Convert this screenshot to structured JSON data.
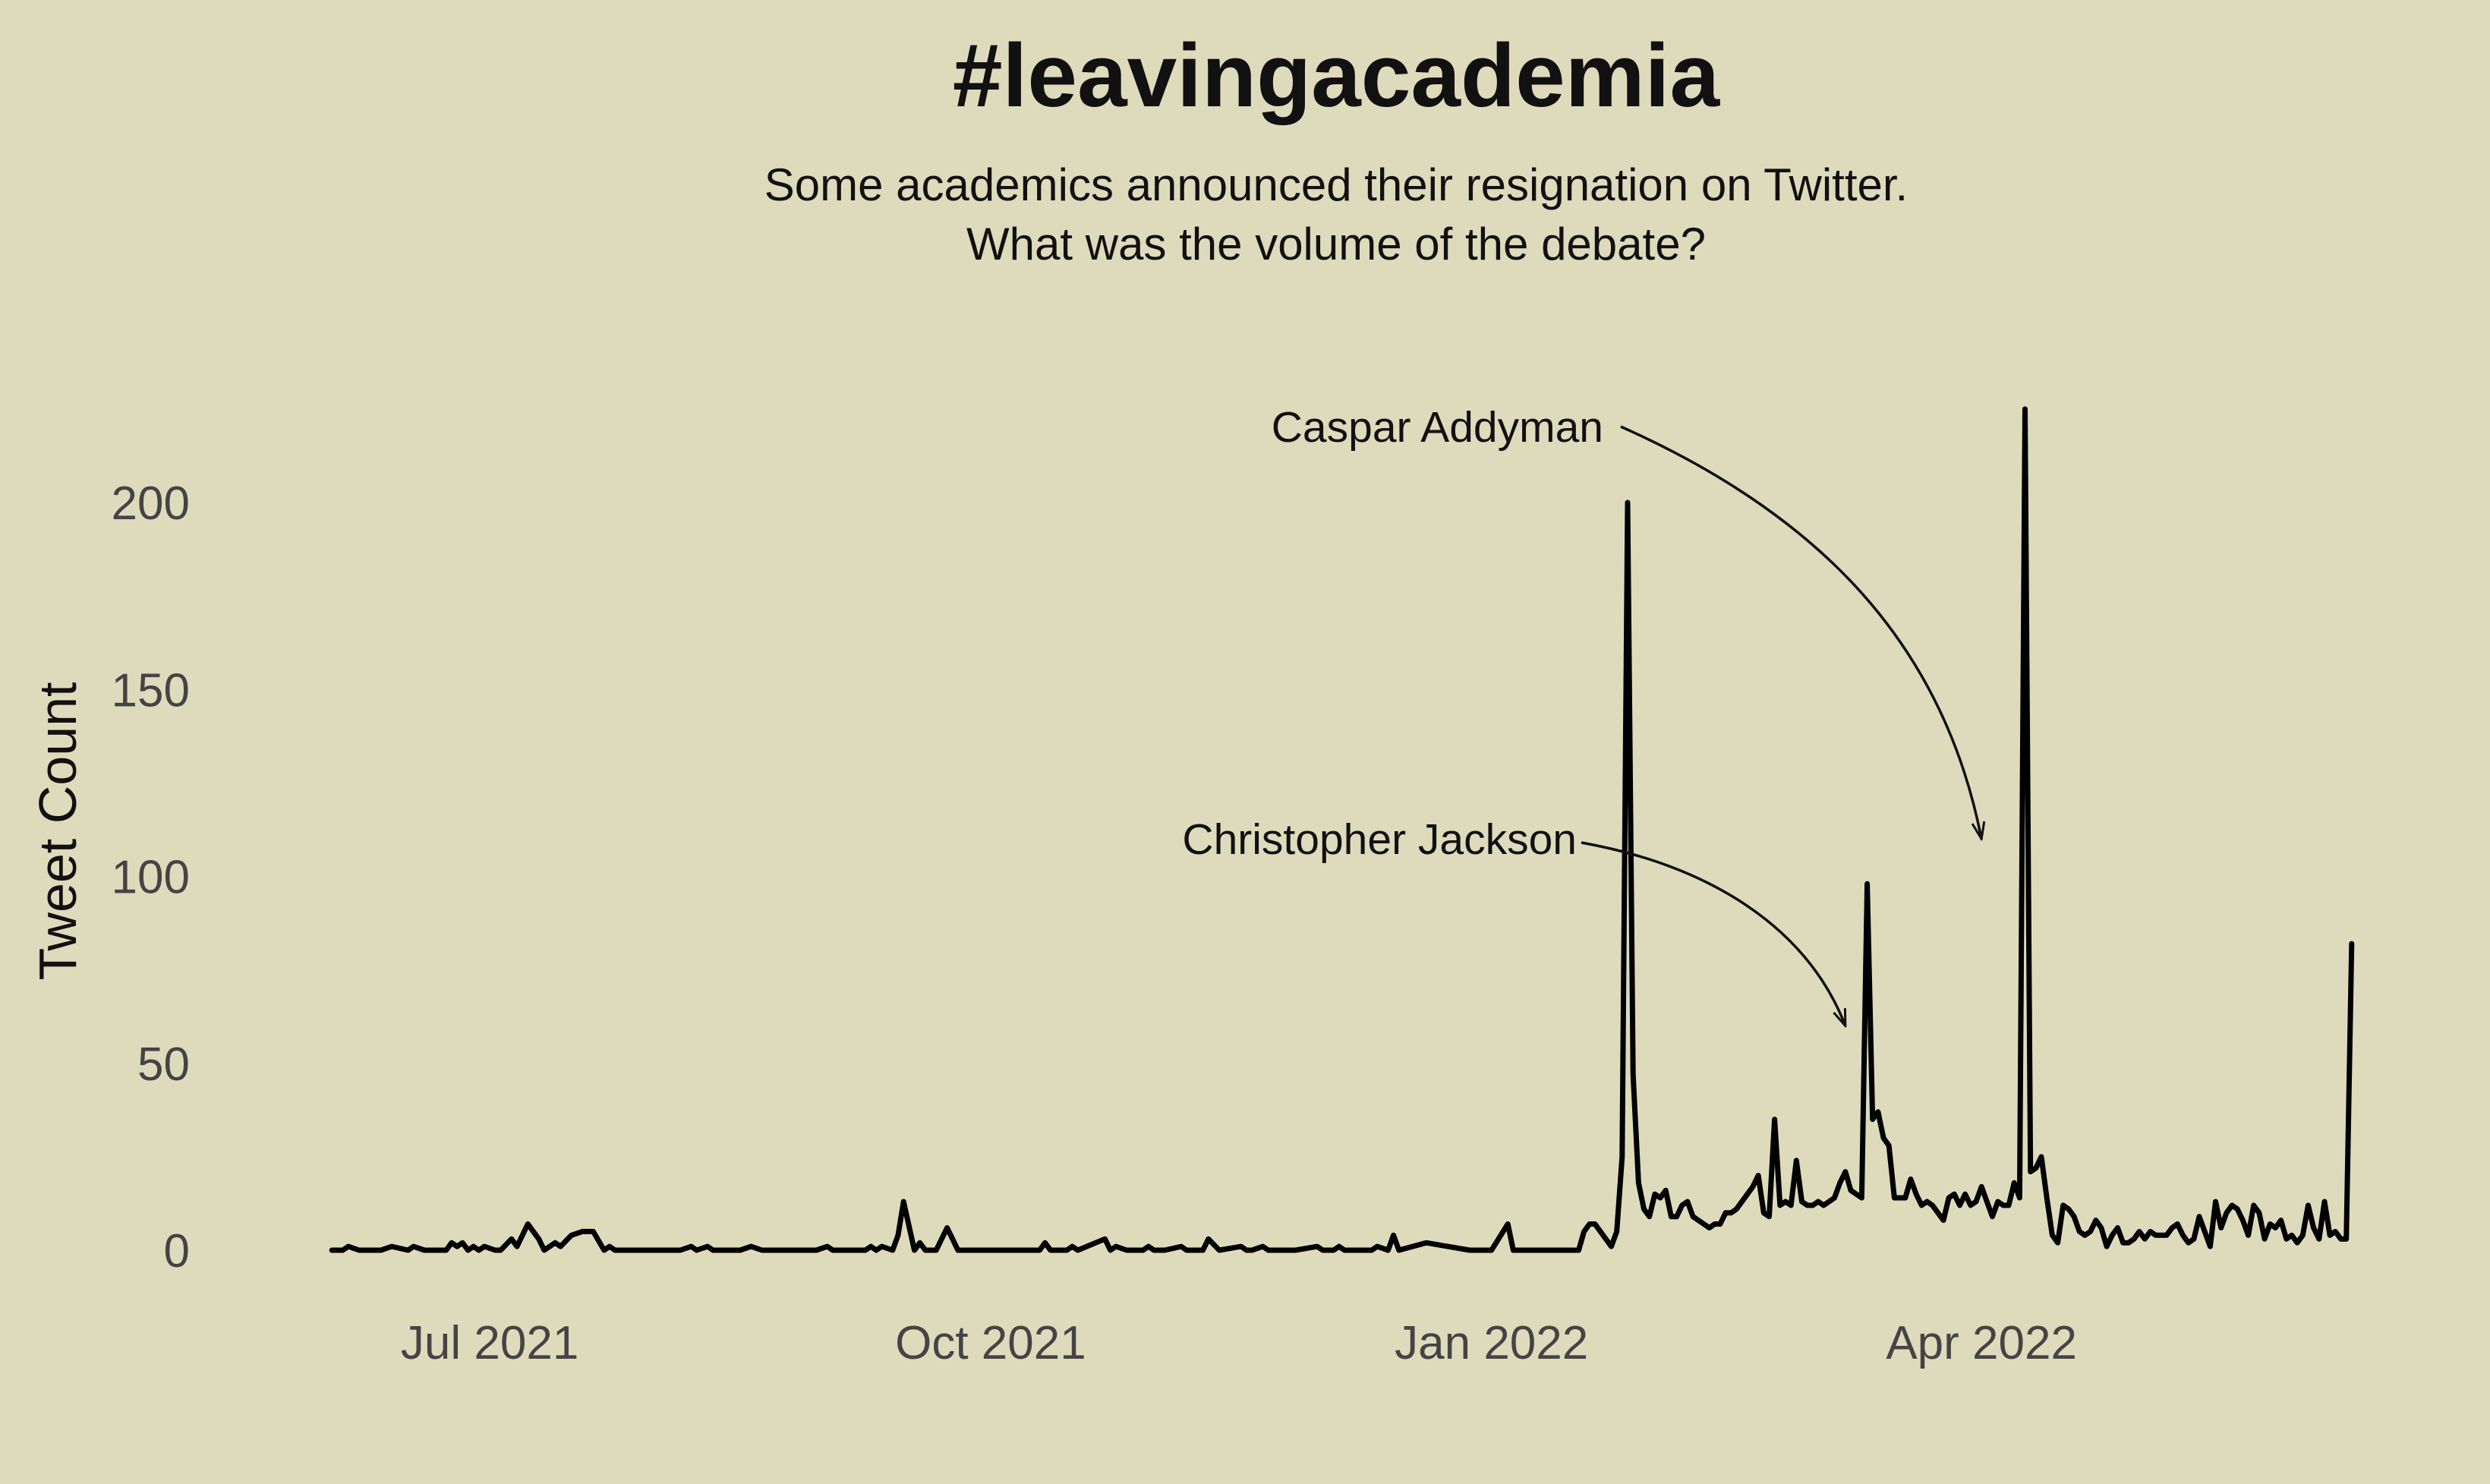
{
  "chart_data": {
    "type": "line",
    "title": "#leavingacademia",
    "subtitle_lines": [
      "Some academics announced their resignation on Twitter.",
      "What was the volume of the debate?"
    ],
    "xlabel": "",
    "ylabel": "Tweet Count",
    "ylim": [
      0,
      225
    ],
    "yticks": [
      0,
      50,
      100,
      150,
      200
    ],
    "xticks": [
      {
        "date": "2021-07-01",
        "label": "Jul 2021"
      },
      {
        "date": "2021-10-01",
        "label": "Oct 2021"
      },
      {
        "date": "2022-01-01",
        "label": "Jan 2022"
      },
      {
        "date": "2022-04-01",
        "label": "Apr 2022"
      }
    ],
    "grid": false,
    "legend": "none",
    "line_color": "#000000",
    "background": "#dedbbd",
    "annotations": [
      {
        "label": "Caspar Addyman",
        "point_date": "2022-04-01",
        "point_value": 110
      },
      {
        "label": "Christopher Jackson",
        "point_date": "2022-03-07",
        "point_value": 60
      }
    ],
    "series": [
      {
        "x": [
          "2021-06-02",
          "2021-06-04",
          "2021-06-05",
          "2021-06-07",
          "2021-06-10",
          "2021-06-11",
          "2021-06-13",
          "2021-06-16",
          "2021-06-17",
          "2021-06-19",
          "2021-06-23",
          "2021-06-24",
          "2021-06-25",
          "2021-06-26",
          "2021-06-27",
          "2021-06-28",
          "2021-06-29",
          "2021-06-30",
          "2021-07-02",
          "2021-07-03",
          "2021-07-05",
          "2021-07-06",
          "2021-07-08",
          "2021-07-10",
          "2021-07-11",
          "2021-07-13",
          "2021-07-14",
          "2021-07-16",
          "2021-07-18",
          "2021-07-20",
          "2021-07-22",
          "2021-07-23",
          "2021-07-24",
          "2021-07-26",
          "2021-07-28",
          "2021-08-03",
          "2021-08-05",
          "2021-08-07",
          "2021-08-08",
          "2021-08-10",
          "2021-08-11",
          "2021-08-13",
          "2021-08-15",
          "2021-08-16",
          "2021-08-18",
          "2021-08-20",
          "2021-08-22",
          "2021-08-23",
          "2021-08-25",
          "2021-08-27",
          "2021-08-28",
          "2021-08-30",
          "2021-09-01",
          "2021-09-02",
          "2021-09-04",
          "2021-09-05",
          "2021-09-08",
          "2021-09-09",
          "2021-09-10",
          "2021-09-11",
          "2021-09-13",
          "2021-09-14",
          "2021-09-15",
          "2021-09-17",
          "2021-09-18",
          "2021-09-19",
          "2021-09-21",
          "2021-09-23",
          "2021-09-25",
          "2021-10-01",
          "2021-10-10",
          "2021-10-11",
          "2021-10-12",
          "2021-10-15",
          "2021-10-16",
          "2021-10-17",
          "2021-10-22",
          "2021-10-23",
          "2021-10-24",
          "2021-10-26",
          "2021-10-29",
          "2021-10-30",
          "2021-10-31",
          "2021-11-02",
          "2021-11-05",
          "2021-11-06",
          "2021-11-07",
          "2021-11-09",
          "2021-11-10",
          "2021-11-12",
          "2021-11-16",
          "2021-11-17",
          "2021-11-18",
          "2021-11-20",
          "2021-11-21",
          "2021-11-25",
          "2021-11-26",
          "2021-11-30",
          "2021-12-01",
          "2021-12-02",
          "2021-12-03",
          "2021-12-04",
          "2021-12-05",
          "2021-12-06",
          "2021-12-08",
          "2021-12-10",
          "2021-12-11",
          "2021-12-13",
          "2021-12-14",
          "2021-12-15",
          "2021-12-20",
          "2021-12-28",
          "2022-01-01",
          "2022-01-04",
          "2022-01-05",
          "2022-01-06",
          "2022-01-07",
          "2022-01-08",
          "2022-01-10",
          "2022-01-12",
          "2022-01-13",
          "2022-01-14",
          "2022-01-15",
          "2022-01-16",
          "2022-01-17",
          "2022-01-18",
          "2022-01-19",
          "2022-01-20",
          "2022-01-21",
          "2022-01-22",
          "2022-01-23",
          "2022-01-24",
          "2022-01-25",
          "2022-01-26",
          "2022-01-27",
          "2022-01-28",
          "2022-01-29",
          "2022-01-30",
          "2022-01-31",
          "2022-02-01",
          "2022-02-02",
          "2022-02-03",
          "2022-02-04",
          "2022-02-05",
          "2022-02-06",
          "2022-02-07",
          "2022-02-08",
          "2022-02-09",
          "2022-02-10",
          "2022-02-11",
          "2022-02-12",
          "2022-02-13",
          "2022-02-14",
          "2022-02-15",
          "2022-02-16",
          "2022-02-17",
          "2022-02-18",
          "2022-02-19",
          "2022-02-20",
          "2022-02-21",
          "2022-02-22",
          "2022-02-23",
          "2022-02-24",
          "2022-02-25",
          "2022-02-26",
          "2022-02-27",
          "2022-02-28",
          "2022-03-01",
          "2022-03-02",
          "2022-03-03",
          "2022-03-04",
          "2022-03-05",
          "2022-03-06",
          "2022-03-07",
          "2022-03-08",
          "2022-03-09",
          "2022-03-10",
          "2022-03-11",
          "2022-03-12",
          "2022-03-13",
          "2022-03-14",
          "2022-03-15",
          "2022-03-16",
          "2022-03-17",
          "2022-03-18",
          "2022-03-19",
          "2022-03-20",
          "2022-03-21",
          "2022-03-22",
          "2022-03-23",
          "2022-03-24",
          "2022-03-25",
          "2022-03-26",
          "2022-03-27",
          "2022-03-28",
          "2022-03-29",
          "2022-03-30",
          "2022-03-31",
          "2022-04-01",
          "2022-04-02",
          "2022-04-03",
          "2022-04-04",
          "2022-04-05",
          "2022-04-06",
          "2022-04-07",
          "2022-04-08",
          "2022-04-09",
          "2022-04-10",
          "2022-04-11",
          "2022-04-12",
          "2022-04-13",
          "2022-04-14",
          "2022-04-15",
          "2022-04-16",
          "2022-04-17",
          "2022-04-18",
          "2022-04-19",
          "2022-04-20",
          "2022-04-21",
          "2022-04-22",
          "2022-04-23",
          "2022-04-24",
          "2022-04-25",
          "2022-04-26",
          "2022-04-27",
          "2022-04-28",
          "2022-04-29",
          "2022-04-30",
          "2022-05-01",
          "2022-05-02",
          "2022-05-03",
          "2022-05-04",
          "2022-05-05",
          "2022-05-06",
          "2022-05-07",
          "2022-05-08",
          "2022-05-09",
          "2022-05-10",
          "2022-05-11",
          "2022-05-12",
          "2022-05-13",
          "2022-05-14",
          "2022-05-15",
          "2022-05-16",
          "2022-05-17",
          "2022-05-18",
          "2022-05-19",
          "2022-05-20",
          "2022-05-21",
          "2022-05-22",
          "2022-05-23",
          "2022-05-24",
          "2022-05-25",
          "2022-05-26",
          "2022-05-27",
          "2022-05-28",
          "2022-05-29",
          "2022-05-30",
          "2022-05-31",
          "2022-06-01",
          "2022-06-02",
          "2022-06-03",
          "2022-06-04",
          "2022-06-05",
          "2022-06-06",
          "2022-06-07",
          "2022-06-08"
        ],
        "values": [
          0,
          0,
          1,
          0,
          0,
          0,
          1,
          0,
          1,
          0,
          0,
          2,
          1,
          2,
          0,
          1,
          0,
          1,
          0,
          0,
          3,
          1,
          7,
          3,
          0,
          2,
          1,
          4,
          5,
          5,
          0,
          1,
          0,
          0,
          0,
          0,
          0,
          1,
          0,
          1,
          0,
          0,
          0,
          0,
          1,
          0,
          0,
          0,
          0,
          0,
          0,
          0,
          1,
          0,
          0,
          0,
          0,
          1,
          0,
          1,
          0,
          4,
          13,
          0,
          2,
          0,
          0,
          6,
          0,
          0,
          0,
          2,
          0,
          0,
          1,
          0,
          3,
          0,
          1,
          0,
          0,
          1,
          0,
          0,
          1,
          0,
          0,
          0,
          3,
          0,
          1,
          0,
          0,
          1,
          0,
          0,
          0,
          1,
          0,
          0,
          0,
          1,
          0,
          0,
          0,
          0,
          1,
          0,
          4,
          0,
          2,
          0,
          0,
          7,
          0,
          0,
          0,
          0,
          0,
          0,
          0,
          0,
          0,
          0,
          0,
          5,
          7,
          7,
          5,
          3,
          1,
          5,
          25,
          200,
          47,
          18,
          11,
          9,
          15,
          14,
          16,
          9,
          9,
          12,
          13,
          9,
          8,
          7,
          6,
          7,
          7,
          10,
          10,
          11,
          13,
          15,
          17,
          20,
          10,
          9,
          35,
          12,
          13,
          12,
          24,
          13,
          12,
          12,
          13,
          12,
          13,
          14,
          18,
          21,
          16,
          15,
          14,
          98,
          35,
          37,
          30,
          28,
          14,
          14,
          14,
          19,
          15,
          12,
          13,
          12,
          10,
          8,
          14,
          15,
          12,
          15,
          12,
          13,
          17,
          13,
          9,
          13,
          12,
          12,
          18,
          14,
          225,
          21,
          22,
          25,
          14,
          4,
          2,
          12,
          11,
          9,
          5,
          4,
          5,
          8,
          6,
          1,
          4,
          6,
          2,
          2,
          3,
          5,
          3,
          5,
          4,
          4,
          4,
          6,
          7,
          4,
          2,
          3,
          9,
          5,
          1,
          13,
          6,
          10,
          12,
          11,
          8,
          4,
          12,
          10,
          3,
          7,
          6,
          8,
          3,
          4,
          2,
          4,
          12,
          6,
          3,
          13,
          4,
          5,
          3,
          3,
          82
        ]
      }
    ]
  }
}
